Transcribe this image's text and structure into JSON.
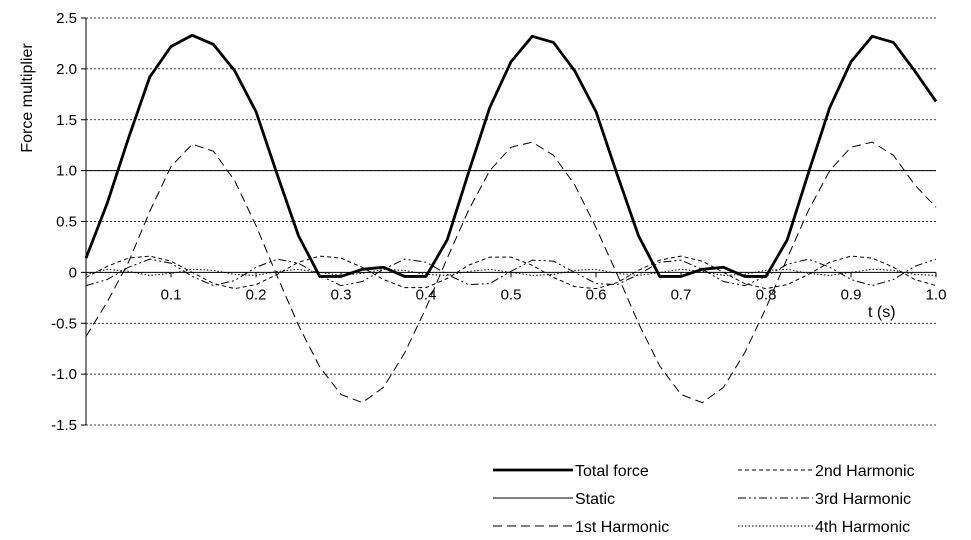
{
  "chart_data": {
    "type": "line",
    "title": "",
    "xlabel": "t (s)",
    "ylabel": "Force multiplier",
    "xlim": [
      0,
      1.0
    ],
    "ylim": [
      -1.5,
      2.5
    ],
    "grid": true,
    "legend_position": "bottom-right",
    "x_ticks": [
      "0.1",
      "0.2",
      "0.3",
      "0.4",
      "0.5",
      "0.6",
      "0.7",
      "0.8",
      "0.9",
      "1.0"
    ],
    "y_ticks": [
      "2.5",
      "2.0",
      "1.5",
      "1.0",
      "0.5",
      "0",
      "-0.5",
      "-1.0",
      "-1.5"
    ],
    "x": [
      0.0,
      0.025,
      0.05,
      0.075,
      0.1,
      0.125,
      0.15,
      0.175,
      0.2,
      0.225,
      0.25,
      0.275,
      0.3,
      0.325,
      0.35,
      0.375,
      0.4,
      0.425,
      0.45,
      0.475,
      0.5,
      0.525,
      0.55,
      0.575,
      0.6,
      0.625,
      0.65,
      0.675,
      0.7,
      0.725,
      0.75,
      0.775,
      0.8,
      0.825,
      0.85,
      0.875,
      0.9,
      0.925,
      0.95,
      0.975,
      1.0
    ],
    "series": [
      {
        "name": "Total force",
        "style": "thick-solid",
        "values": [
          0.14,
          0.68,
          1.32,
          1.92,
          2.22,
          2.33,
          2.24,
          1.98,
          1.58,
          0.96,
          0.36,
          -0.04,
          -0.04,
          0.03,
          0.05,
          -0.04,
          -0.04,
          0.32,
          0.98,
          1.62,
          2.07,
          2.32,
          2.26,
          1.98,
          1.58,
          0.96,
          0.36,
          -0.04,
          -0.04,
          0.03,
          0.05,
          -0.04,
          -0.04,
          0.32,
          0.98,
          1.62,
          2.07,
          2.32,
          2.26,
          1.98,
          1.68
        ]
      },
      {
        "name": "Static",
        "style": "thin-solid",
        "values": [
          1.0,
          1.0,
          1.0,
          1.0,
          1.0,
          1.0,
          1.0,
          1.0,
          1.0,
          1.0,
          1.0,
          1.0,
          1.0,
          1.0,
          1.0,
          1.0,
          1.0,
          1.0,
          1.0,
          1.0,
          1.0,
          1.0,
          1.0,
          1.0,
          1.0,
          1.0,
          1.0,
          1.0,
          1.0,
          1.0,
          1.0,
          1.0,
          1.0,
          1.0,
          1.0,
          1.0,
          1.0,
          1.0,
          1.0,
          1.0,
          1.0
        ]
      },
      {
        "name": "1st Harmonic",
        "style": "long-dash",
        "values": [
          -0.63,
          -0.29,
          0.1,
          0.6,
          1.04,
          1.26,
          1.19,
          0.9,
          0.46,
          -0.04,
          -0.52,
          -0.93,
          -1.2,
          -1.28,
          -1.13,
          -0.79,
          -0.35,
          0.14,
          0.61,
          1.0,
          1.23,
          1.28,
          1.15,
          0.86,
          0.44,
          -0.02,
          -0.5,
          -0.92,
          -1.2,
          -1.28,
          -1.13,
          -0.79,
          -0.35,
          0.14,
          0.61,
          1.0,
          1.23,
          1.28,
          1.15,
          0.86,
          0.64
        ]
      },
      {
        "name": "2nd Harmonic",
        "style": "short-dash",
        "values": [
          -0.05,
          0.06,
          0.14,
          0.16,
          0.11,
          0.0,
          -0.11,
          -0.16,
          -0.12,
          -0.02,
          0.1,
          0.16,
          0.14,
          0.05,
          -0.07,
          -0.15,
          -0.15,
          -0.06,
          0.07,
          0.15,
          0.15,
          0.07,
          -0.05,
          -0.14,
          -0.16,
          -0.1,
          0.02,
          0.12,
          0.16,
          0.11,
          0.0,
          -0.11,
          -0.16,
          -0.12,
          -0.02,
          0.1,
          0.16,
          0.14,
          0.05,
          -0.07,
          -0.13
        ]
      },
      {
        "name": "3rd Harmonic",
        "style": "dash-dot-dot",
        "values": [
          -0.13,
          -0.07,
          0.05,
          0.13,
          0.09,
          -0.04,
          -0.13,
          -0.08,
          0.05,
          0.13,
          0.09,
          -0.03,
          -0.13,
          -0.09,
          0.03,
          0.13,
          0.1,
          -0.02,
          -0.12,
          -0.11,
          0.01,
          0.12,
          0.11,
          0.0,
          -0.11,
          -0.12,
          -0.02,
          0.1,
          0.12,
          0.03,
          -0.09,
          -0.13,
          -0.04,
          0.08,
          0.13,
          0.05,
          -0.07,
          -0.13,
          -0.07,
          0.06,
          0.13
        ]
      },
      {
        "name": "4th Harmonic",
        "style": "dotted",
        "values": [
          -0.02,
          0.03,
          0.01,
          -0.03,
          -0.01,
          0.03,
          0.02,
          -0.02,
          -0.03,
          0.01,
          0.03,
          0.0,
          -0.03,
          -0.01,
          0.03,
          0.02,
          -0.02,
          -0.03,
          0.01,
          0.03,
          0.0,
          -0.03,
          -0.02,
          0.02,
          0.03,
          -0.01,
          -0.03,
          0.0,
          0.03,
          0.01,
          -0.03,
          -0.02,
          0.02,
          0.03,
          -0.01,
          -0.03,
          0.0,
          0.03,
          0.02,
          -0.02,
          -0.03
        ]
      }
    ]
  }
}
